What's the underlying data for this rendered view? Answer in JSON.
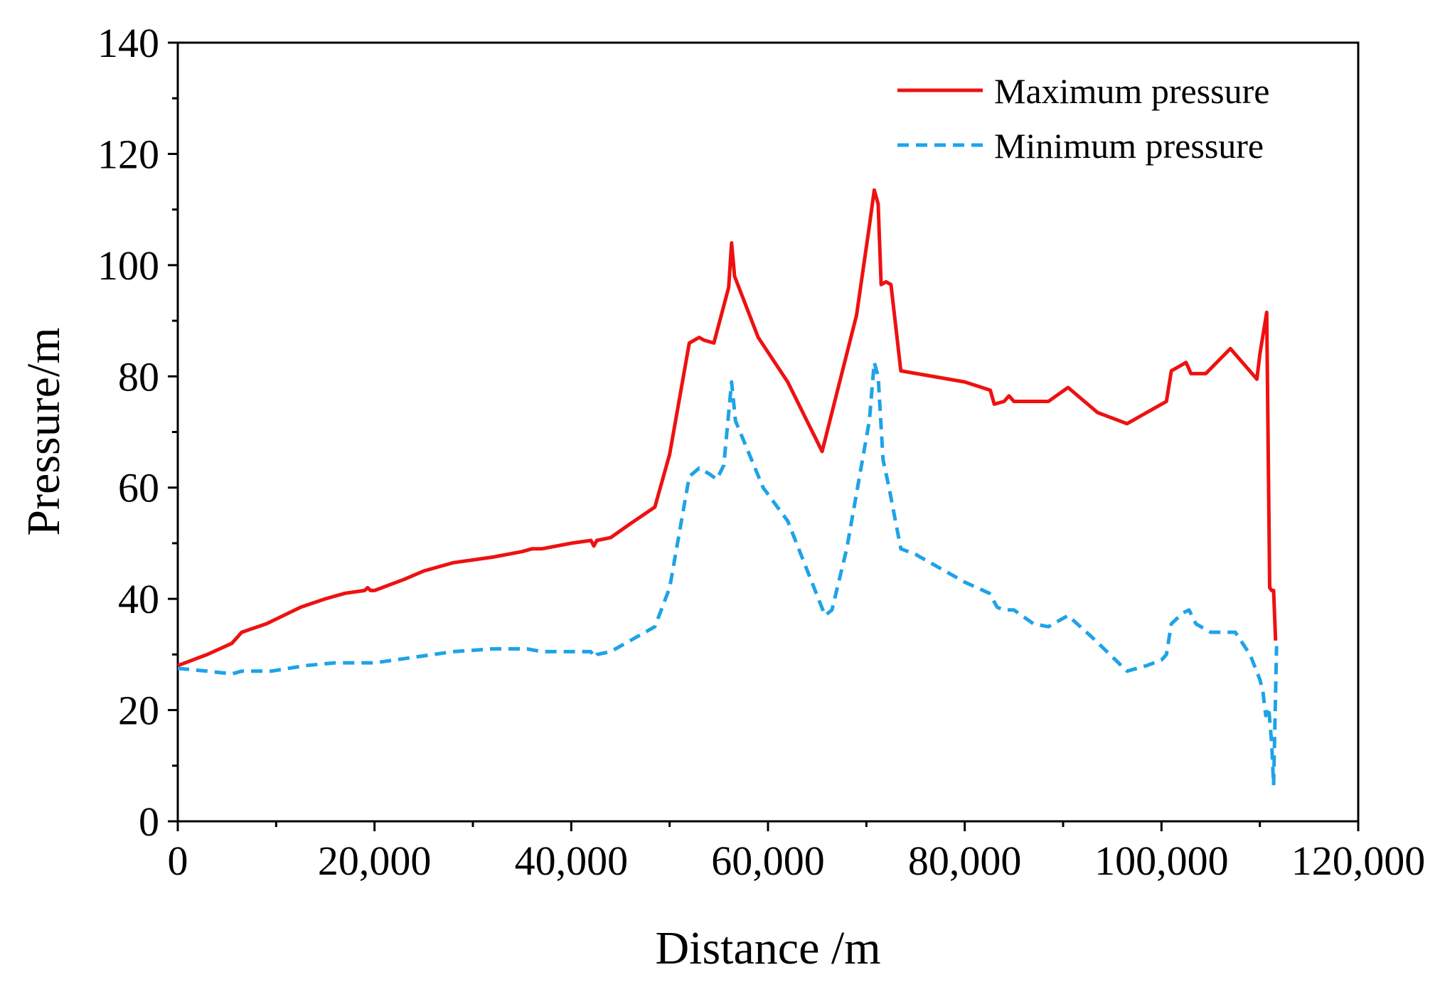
{
  "chart_data": {
    "type": "line",
    "title": "",
    "xlabel": "Distance /m",
    "ylabel": "Pressure/m",
    "xlim": [
      0,
      120000
    ],
    "ylim": [
      0,
      140
    ],
    "x_ticks": [
      0,
      20000,
      40000,
      60000,
      80000,
      100000,
      120000
    ],
    "x_tick_labels": [
      "0",
      "20,000",
      "40,000",
      "60,000",
      "80,000",
      "100,000",
      "120,000"
    ],
    "y_ticks": [
      0,
      20,
      40,
      60,
      80,
      100,
      120,
      140
    ],
    "y_tick_labels": [
      "0",
      "20",
      "40",
      "60",
      "80",
      "100",
      "120",
      "140"
    ],
    "grid": false,
    "legend_position": "top-right",
    "series": [
      {
        "name": "Maximum pressure",
        "color": "#ee1111",
        "style": "solid",
        "x": [
          0,
          3000,
          5500,
          6500,
          9000,
          12500,
          15000,
          17000,
          19000,
          19300,
          19600,
          20000,
          23000,
          25000,
          28000,
          32000,
          35000,
          36000,
          37000,
          40000,
          42000,
          42300,
          42600,
          44000,
          46000,
          48500,
          50000,
          52000,
          52500,
          53000,
          53500,
          54500,
          56000,
          56300,
          56600,
          59000,
          62000,
          65500,
          67000,
          69000,
          70300,
          70800,
          71200,
          71500,
          72000,
          72500,
          73500,
          80000,
          82600,
          83000,
          84000,
          84500,
          85000,
          88500,
          90500,
          93500,
          96500,
          98000,
          99500,
          100500,
          101000,
          102500,
          103000,
          104500,
          107000,
          109700,
          110000,
          110700,
          111000,
          111200,
          111400,
          111600
        ],
        "values": [
          28,
          30,
          32,
          34,
          35.5,
          38.5,
          40,
          41,
          41.5,
          42,
          41.5,
          41.5,
          43.5,
          45,
          46.5,
          47.5,
          48.5,
          49,
          49,
          50,
          50.5,
          49.5,
          50.5,
          51,
          53.5,
          56.5,
          66,
          86,
          86.5,
          87,
          86.5,
          86,
          96,
          104,
          98,
          87,
          79,
          66.5,
          77,
          91,
          107,
          113.5,
          111,
          96.5,
          97,
          96.5,
          81,
          79,
          77.5,
          75,
          75.5,
          76.5,
          75.5,
          75.5,
          78,
          73.5,
          71.5,
          73,
          74.5,
          75.5,
          81,
          82.5,
          80.5,
          80.5,
          85,
          79.5,
          84,
          91.5,
          42,
          41.5,
          41.5,
          32.5
        ]
      },
      {
        "name": "Minimum pressure",
        "color": "#1ea3e8",
        "style": "dashed",
        "x": [
          0,
          3000,
          5500,
          6500,
          9500,
          13000,
          16000,
          20000,
          24000,
          28000,
          32000,
          35500,
          37000,
          40000,
          42000,
          42300,
          42600,
          44000,
          48500,
          50000,
          52000,
          53000,
          54000,
          54800,
          55500,
          56300,
          56700,
          59500,
          62000,
          65800,
          66500,
          68000,
          70300,
          70800,
          71200,
          71700,
          72300,
          73500,
          75000,
          80000,
          82500,
          83300,
          84000,
          85000,
          87000,
          88500,
          90500,
          93000,
          96500,
          98500,
          100000,
          100500,
          101000,
          102200,
          102800,
          103500,
          105000,
          107500,
          109000,
          110000,
          110300,
          110600,
          110900,
          111200,
          111400,
          111700
        ],
        "values": [
          27.5,
          27,
          26.5,
          27,
          27,
          28,
          28.5,
          28.5,
          29.5,
          30.5,
          31,
          31,
          30.5,
          30.5,
          30.5,
          29.5,
          30,
          30.5,
          35,
          42,
          62,
          63.5,
          62.5,
          61.5,
          64,
          79,
          72,
          60,
          54,
          37,
          38,
          49,
          72,
          82.5,
          80,
          65,
          60,
          49,
          48,
          43,
          41,
          38.5,
          38,
          38,
          35.5,
          35,
          37,
          33,
          27,
          28,
          29,
          30,
          35.5,
          37.5,
          38,
          35.5,
          34,
          34,
          30,
          25.5,
          23.5,
          19,
          20.5,
          14,
          6.5,
          31.5
        ]
      }
    ]
  }
}
